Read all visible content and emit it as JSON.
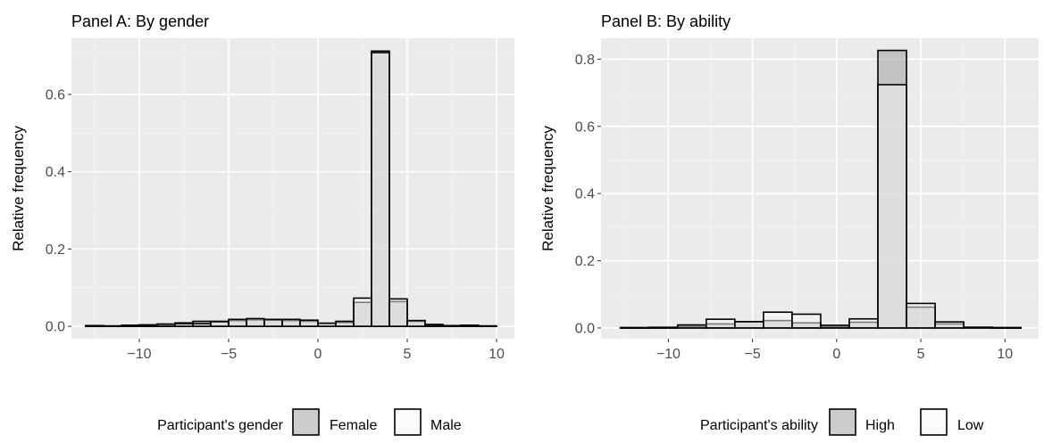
{
  "chart_data": [
    {
      "type": "bar",
      "title": "Panel A: By gender",
      "xlabel": "",
      "ylabel": "Relative frequency",
      "xlim": [
        -13.8,
        11.0
      ],
      "ylim": [
        -0.032,
        0.745
      ],
      "xticks": [
        -10,
        -5,
        0,
        5,
        10
      ],
      "xtick_labels": [
        "−10",
        "−5",
        "0",
        "5",
        "10"
      ],
      "yticks": [
        0.0,
        0.2,
        0.4,
        0.6
      ],
      "ytick_labels": [
        "0.0",
        "0.2",
        "0.4",
        "0.6"
      ],
      "grid": true,
      "legend_position": "bottom",
      "legend_title": "Participant's gender",
      "bin_width": 1,
      "x": [
        -12.5,
        -11.5,
        -10.5,
        -9.5,
        -8.5,
        -7.5,
        -6.5,
        -5.5,
        -4.5,
        -3.5,
        -2.5,
        -1.5,
        -0.5,
        0.5,
        1.5,
        2.5,
        3.5,
        4.5,
        5.5,
        6.5,
        7.5,
        8.5,
        9.5
      ],
      "series": [
        {
          "name": "Female",
          "color": "#999999",
          "values": [
            0.002,
            0.001,
            0.002,
            0.004,
            0.004,
            0.009,
            0.013,
            0.013,
            0.015,
            0.017,
            0.016,
            0.015,
            0.013,
            0.008,
            0.01,
            0.062,
            0.712,
            0.064,
            0.013,
            0.005,
            0.002,
            0.003,
            0.001
          ]
        },
        {
          "name": "Male",
          "color": "#f7f7f7",
          "values": [
            0.001,
            0.001,
            0.003,
            0.002,
            0.006,
            0.007,
            0.007,
            0.012,
            0.018,
            0.02,
            0.018,
            0.018,
            0.016,
            0.008,
            0.013,
            0.073,
            0.708,
            0.071,
            0.015,
            0.004,
            0.001,
            0.002,
            0.001
          ]
        }
      ]
    },
    {
      "type": "bar",
      "title": "Panel B: By ability",
      "xlabel": "",
      "ylabel": "Relative frequency",
      "xlim": [
        -14.0,
        12.0
      ],
      "ylim": [
        -0.032,
        0.862
      ],
      "xticks": [
        -10,
        -5,
        0,
        5,
        10
      ],
      "xtick_labels": [
        "−10",
        "−5",
        "0",
        "5",
        "10"
      ],
      "yticks": [
        0.0,
        0.2,
        0.4,
        0.6,
        0.8
      ],
      "ytick_labels": [
        "0.0",
        "0.2",
        "0.4",
        "0.6",
        "0.8"
      ],
      "grid": true,
      "legend_position": "bottom",
      "legend_title": "Participant's ability",
      "bin_width": 1.7,
      "x": [
        -12,
        -10.3,
        -8.6,
        -6.9,
        -5.2,
        -3.5,
        -1.8,
        -0.1,
        1.6,
        3.3,
        5.0,
        6.7,
        8.4,
        10.1
      ],
      "series": [
        {
          "name": "High",
          "color": "#999999",
          "values": [
            0.001,
            0.001,
            0.005,
            0.012,
            0.018,
            0.022,
            0.015,
            0.004,
            0.017,
            0.826,
            0.062,
            0.012,
            0.002,
            0.001
          ]
        },
        {
          "name": "Low",
          "color": "#f7f7f7",
          "values": [
            0.001,
            0.002,
            0.009,
            0.026,
            0.019,
            0.047,
            0.041,
            0.008,
            0.027,
            0.724,
            0.073,
            0.018,
            0.002,
            0.001
          ]
        }
      ]
    }
  ]
}
